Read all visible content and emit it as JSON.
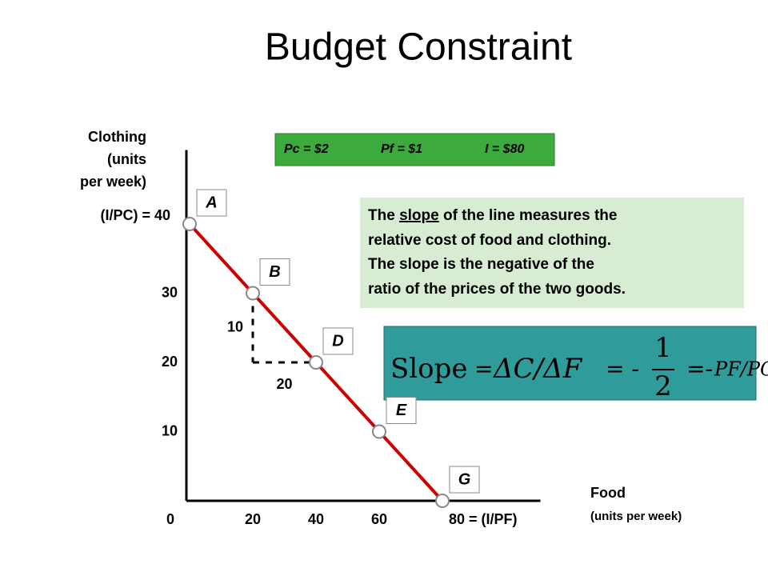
{
  "chart_data": {
    "type": "line",
    "title": "Budget Constraint",
    "x": [
      0,
      20,
      40,
      60,
      80
    ],
    "values": [
      40,
      30,
      20,
      10,
      0
    ],
    "color": "#cc0000",
    "point_labels": [
      "A",
      "B",
      "D",
      "E",
      "G"
    ],
    "xlim": [
      0,
      110
    ],
    "ylim": [
      0,
      50
    ],
    "xticks": [
      0,
      20,
      40,
      60,
      {
        "value": 80,
        "label": "80 = (I/PF)"
      }
    ],
    "yticks": [
      10,
      20,
      30,
      {
        "value": 40,
        "label": "(I/PC) = 40"
      }
    ],
    "y_label": [
      "Clothing",
      "(units",
      "per week)"
    ],
    "x_label": [
      "Food",
      "(units per week)"
    ],
    "slope_triangle": {
      "rise": 10,
      "run": 20
    },
    "prices": [
      "Pc = $2",
      "Pf = $1",
      "I = $80"
    ],
    "note": [
      [
        "The ",
        "slope",
        " of the line measures the"
      ],
      [
        "relative cost of food and clothing."
      ],
      [
        "The slope is the negative of the"
      ],
      [
        "ratio of the prices of the two goods."
      ]
    ],
    "formula": [
      "Slope",
      "=",
      "ΔC/ΔF",
      "= -",
      "1",
      "2",
      "=-",
      "PF/PC"
    ]
  }
}
